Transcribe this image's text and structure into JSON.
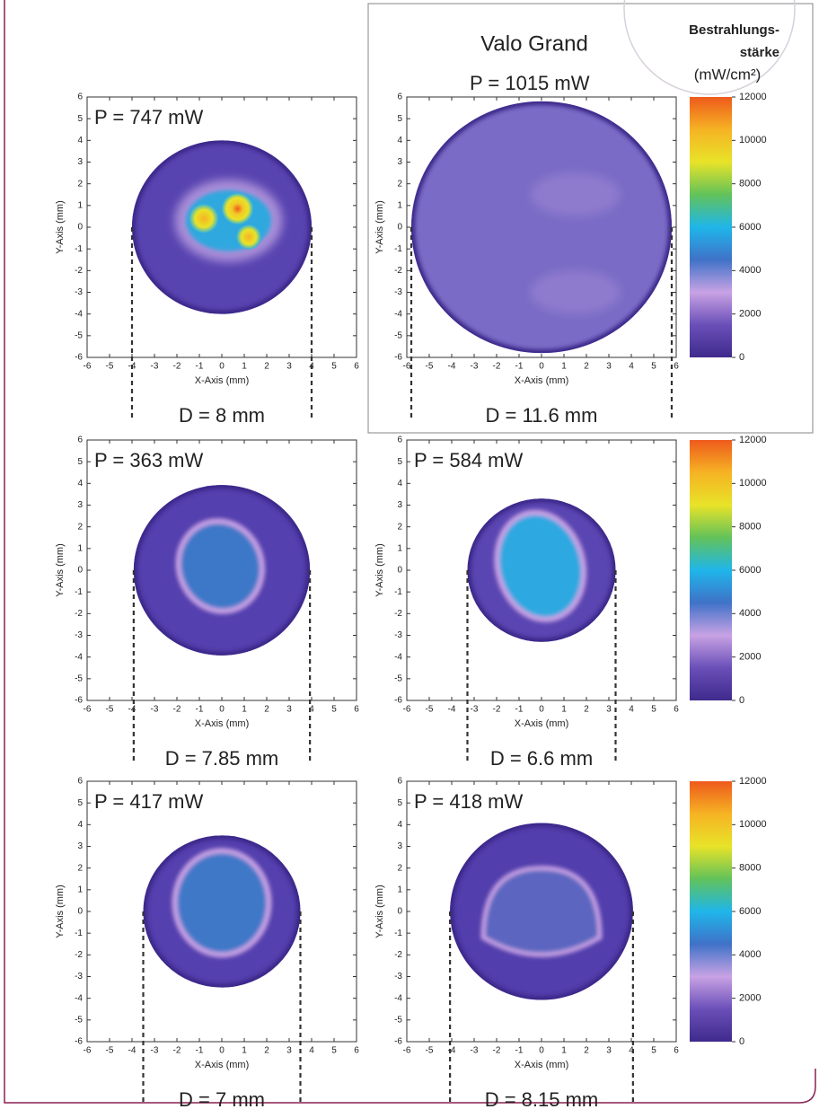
{
  "figure": {
    "label": "Valo Grand",
    "colorbar": {
      "title": [
        "Bestrahlungs-",
        "stärke",
        "(mW/cm²)"
      ],
      "lim": [
        0,
        12000
      ],
      "ticks": [
        0,
        2000,
        4000,
        6000,
        8000,
        10000,
        12000
      ],
      "colors": [
        "#3f2a8c",
        "#6a4fb8",
        "#c8a2e4",
        "#3f72c8",
        "#1fb6ea",
        "#62c25a",
        "#e8e328",
        "#f6b324",
        "#ee5a1c"
      ]
    }
  },
  "chart_data": [
    {
      "type": "heatmap",
      "title": "P = 747 mW",
      "annotation": "D = 8 mm",
      "diameter": 8,
      "color": "#5844b0",
      "xlabel": "X-Axis (mm)",
      "ylabel": "Y-Axis (mm)",
      "xlim": [
        -6,
        6
      ],
      "ylim": [
        -6,
        6
      ],
      "xticks": [
        -6,
        -5,
        -4,
        -3,
        -2,
        -1,
        0,
        1,
        2,
        3,
        4,
        5,
        6
      ],
      "yticks": [
        -6,
        -5,
        -4,
        -3,
        -2,
        -1,
        0,
        1,
        2,
        3,
        4,
        5,
        6
      ]
    },
    {
      "type": "heatmap",
      "title": "P = 1015 mW",
      "annotation": "D = 11.6 mm",
      "diameter": 11.6,
      "color": "#7a6cc6",
      "xlabel": "X-Axis (mm)",
      "ylabel": "Y-Axis (mm)",
      "xlim": [
        -6,
        6
      ],
      "ylim": [
        -6,
        6
      ],
      "xticks": [
        -6,
        -5,
        -4,
        -3,
        -2,
        -1,
        0,
        1,
        2,
        3,
        4,
        5,
        6
      ],
      "yticks": [
        -6,
        -5,
        -4,
        -3,
        -2,
        -1,
        0,
        1,
        2,
        3,
        4,
        5,
        6
      ]
    },
    {
      "type": "heatmap",
      "title": "P = 363 mW",
      "annotation": "D = 7.85 mm",
      "diameter": 7.85,
      "color": "#5440ae",
      "xlabel": "X-Axis (mm)",
      "ylabel": "Y-Axis (mm)",
      "xlim": [
        -6,
        6
      ],
      "ylim": [
        -6,
        6
      ],
      "xticks": [
        -6,
        -5,
        -4,
        -3,
        -2,
        -1,
        0,
        1,
        2,
        3,
        4,
        5,
        6
      ],
      "yticks": [
        -6,
        -5,
        -4,
        -3,
        -2,
        -1,
        0,
        1,
        2,
        3,
        4,
        5,
        6
      ]
    },
    {
      "type": "heatmap",
      "title": "P = 584 mW",
      "annotation": "D = 6.6 mm",
      "diameter": 6.6,
      "color": "#5a46b2",
      "xlabel": "X-Axis (mm)",
      "ylabel": "Y-Axis (mm)",
      "xlim": [
        -6,
        6
      ],
      "ylim": [
        -6,
        6
      ],
      "xticks": [
        -6,
        -5,
        -4,
        -3,
        -2,
        -1,
        0,
        1,
        2,
        3,
        4,
        5,
        6
      ],
      "yticks": [
        -6,
        -5,
        -4,
        -3,
        -2,
        -1,
        0,
        1,
        2,
        3,
        4,
        5,
        6
      ]
    },
    {
      "type": "heatmap",
      "title": "P = 417 mW",
      "annotation": "D = 7 mm",
      "diameter": 7,
      "color": "#5440ae",
      "xlabel": "X-Axis (mm)",
      "ylabel": "Y-Axis (mm)",
      "xlim": [
        -6,
        6
      ],
      "ylim": [
        -6,
        6
      ],
      "xticks": [
        -6,
        -5,
        -4,
        -3,
        -2,
        -1,
        0,
        1,
        2,
        3,
        4,
        5,
        6
      ],
      "yticks": [
        -6,
        -5,
        -4,
        -3,
        -2,
        -1,
        0,
        1,
        2,
        3,
        4,
        5,
        6
      ]
    },
    {
      "type": "heatmap",
      "title": "P = 418 mW",
      "annotation": "D = 8.15 mm",
      "diameter": 8.15,
      "color": "#523eac",
      "xlabel": "X-Axis (mm)",
      "ylabel": "Y-Axis (mm)",
      "xlim": [
        -6,
        6
      ],
      "ylim": [
        -6,
        6
      ],
      "xticks": [
        -6,
        -5,
        -4,
        -3,
        -2,
        -1,
        0,
        1,
        2,
        3,
        4,
        5,
        6
      ],
      "yticks": [
        -6,
        -5,
        -4,
        -3,
        -2,
        -1,
        0,
        1,
        2,
        3,
        4,
        5,
        6
      ]
    }
  ]
}
